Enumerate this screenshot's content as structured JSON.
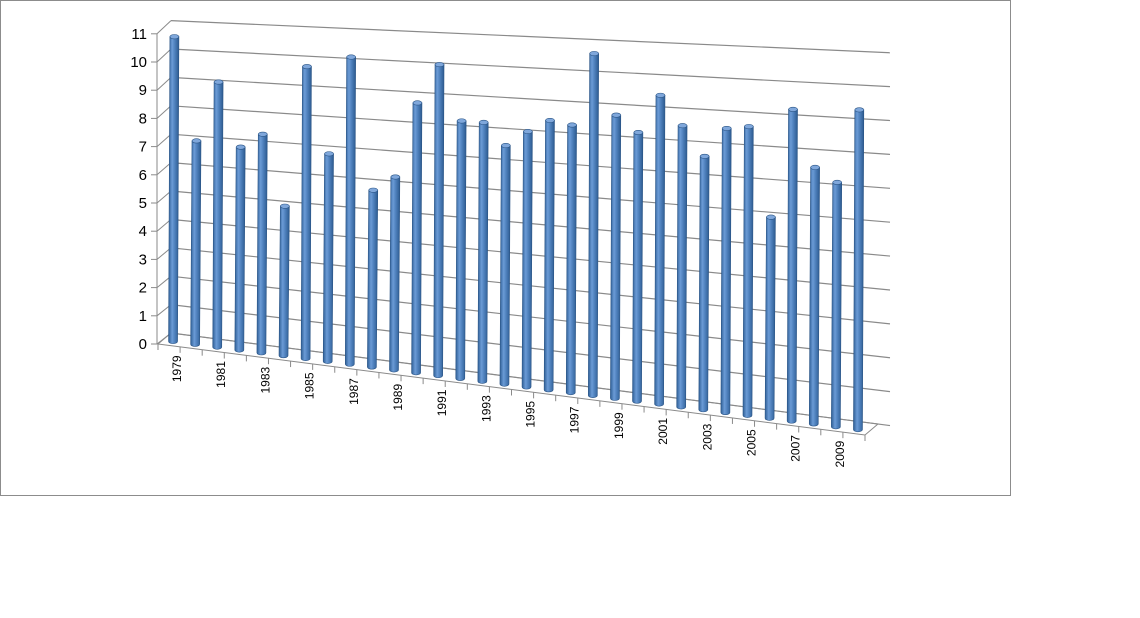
{
  "chart_data": {
    "type": "bar",
    "style": "3d-cylinder",
    "title": "",
    "xlabel": "",
    "ylabel": "",
    "ylim": [
      0,
      11
    ],
    "yticks": [
      0,
      1,
      2,
      3,
      4,
      5,
      6,
      7,
      8,
      9,
      10,
      11
    ],
    "grid": true,
    "legend": "none",
    "bar_color": "#4f81bd",
    "categories": [
      "1979",
      "1980",
      "1981",
      "1982",
      "1983",
      "1984",
      "1985",
      "1986",
      "1987",
      "1988",
      "1989",
      "1990",
      "1991",
      "1992",
      "1993",
      "1994",
      "1995",
      "1996",
      "1997",
      "1998",
      "1999",
      "2000",
      "2001",
      "2002",
      "2003",
      "2004",
      "2005",
      "2006",
      "2007",
      "2008",
      "2009",
      "2010"
    ],
    "shown_category_labels": [
      "1979",
      "1981",
      "1983",
      "1985",
      "1987",
      "1989",
      "1991",
      "1993",
      "1995",
      "1997",
      "1999",
      "2001",
      "2003",
      "2005",
      "2007",
      "2009"
    ],
    "values": [
      10.6,
      7.0,
      9.1,
      6.9,
      7.4,
      5.0,
      9.8,
      6.9,
      10.2,
      5.8,
      6.3,
      8.8,
      10.1,
      8.3,
      8.3,
      7.6,
      8.1,
      8.5,
      8.4,
      10.7,
      8.8,
      8.3,
      9.5,
      8.6,
      7.7,
      8.6,
      8.7,
      6.0,
      9.3,
      7.6,
      7.2,
      9.4
    ]
  }
}
